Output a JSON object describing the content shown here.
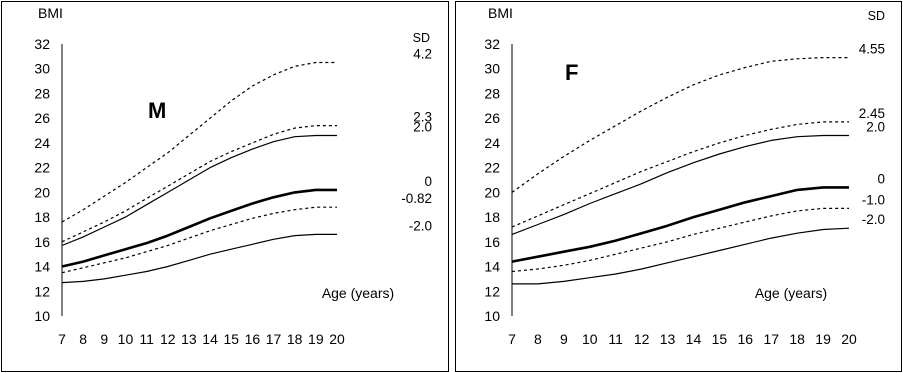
{
  "chart_data": [
    {
      "type": "line",
      "panel_label": "M",
      "ylabel": "BMI",
      "xlabel": "Age (years)",
      "sd_header": "SD",
      "x": [
        7,
        8,
        9,
        10,
        11,
        12,
        13,
        14,
        15,
        16,
        17,
        18,
        19,
        20
      ],
      "xlim": [
        7,
        20
      ],
      "ylim": [
        10,
        32
      ],
      "yticks": [
        10,
        12,
        14,
        16,
        18,
        20,
        22,
        24,
        26,
        28,
        30,
        32
      ],
      "series": [
        {
          "name": "4.2",
          "style": "dashed",
          "values": [
            17.6,
            18.6,
            19.7,
            20.8,
            22.0,
            23.2,
            24.6,
            26.0,
            27.4,
            28.6,
            29.5,
            30.2,
            30.5,
            30.5
          ]
        },
        {
          "name": "2.3",
          "style": "dashed",
          "values": [
            16.0,
            16.8,
            17.6,
            18.5,
            19.5,
            20.5,
            21.5,
            22.5,
            23.3,
            24.0,
            24.7,
            25.2,
            25.4,
            25.4
          ]
        },
        {
          "name": "2.0",
          "style": "solid",
          "values": [
            15.7,
            16.4,
            17.2,
            18.0,
            19.0,
            20.0,
            21.0,
            22.0,
            22.8,
            23.5,
            24.1,
            24.5,
            24.6,
            24.6
          ]
        },
        {
          "name": "0",
          "style": "bold",
          "values": [
            14.0,
            14.4,
            14.9,
            15.4,
            15.9,
            16.5,
            17.2,
            17.9,
            18.5,
            19.1,
            19.6,
            20.0,
            20.2,
            20.2
          ]
        },
        {
          "name": "-0.82",
          "style": "dashed",
          "values": [
            13.5,
            13.9,
            14.3,
            14.7,
            15.2,
            15.7,
            16.3,
            16.9,
            17.4,
            17.9,
            18.3,
            18.6,
            18.8,
            18.8
          ]
        },
        {
          "name": "-2.0",
          "style": "solid",
          "values": [
            12.7,
            12.8,
            13.0,
            13.3,
            13.6,
            14.0,
            14.5,
            15.0,
            15.4,
            15.8,
            16.2,
            16.5,
            16.6,
            16.6
          ]
        }
      ]
    },
    {
      "type": "line",
      "panel_label": "F",
      "ylabel": "BMI",
      "xlabel": "Age (years)",
      "sd_header": "SD",
      "x": [
        7,
        8,
        9,
        10,
        11,
        12,
        13,
        14,
        15,
        16,
        17,
        18,
        19,
        20
      ],
      "xlim": [
        7,
        20
      ],
      "ylim": [
        10,
        32
      ],
      "yticks": [
        10,
        12,
        14,
        16,
        18,
        20,
        22,
        24,
        26,
        28,
        30,
        32
      ],
      "series": [
        {
          "name": "4.55",
          "style": "dashed",
          "values": [
            20.0,
            21.5,
            22.9,
            24.2,
            25.4,
            26.6,
            27.7,
            28.7,
            29.5,
            30.1,
            30.6,
            30.8,
            30.9,
            30.9
          ]
        },
        {
          "name": "2.45",
          "style": "dashed",
          "values": [
            17.2,
            18.1,
            19.0,
            19.9,
            20.8,
            21.7,
            22.5,
            23.3,
            24.0,
            24.6,
            25.1,
            25.5,
            25.7,
            25.7
          ]
        },
        {
          "name": "2.0",
          "style": "solid",
          "values": [
            16.6,
            17.4,
            18.2,
            19.1,
            19.9,
            20.7,
            21.6,
            22.4,
            23.1,
            23.7,
            24.2,
            24.5,
            24.6,
            24.6
          ]
        },
        {
          "name": "0",
          "style": "bold",
          "values": [
            14.4,
            14.8,
            15.2,
            15.6,
            16.1,
            16.7,
            17.3,
            18.0,
            18.6,
            19.2,
            19.7,
            20.2,
            20.4,
            20.4
          ]
        },
        {
          "name": "-1.0",
          "style": "dashed",
          "values": [
            13.6,
            13.8,
            14.1,
            14.5,
            15.0,
            15.5,
            16.0,
            16.6,
            17.1,
            17.6,
            18.1,
            18.5,
            18.7,
            18.7
          ]
        },
        {
          "name": "-2.0",
          "style": "solid",
          "values": [
            12.6,
            12.6,
            12.8,
            13.1,
            13.4,
            13.8,
            14.3,
            14.8,
            15.3,
            15.8,
            16.3,
            16.7,
            17.0,
            17.1
          ]
        }
      ]
    }
  ]
}
